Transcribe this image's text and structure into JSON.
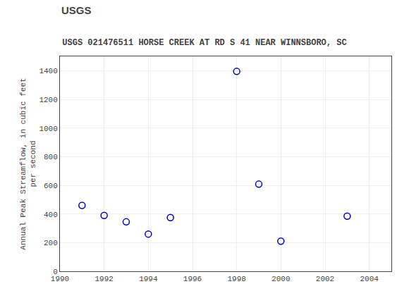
{
  "chart_data": {
    "type": "scatter",
    "title": "USGS 021476511 HORSE CREEK AT RD S 41 NEAR WINNSBORO, SC",
    "annotations": [
      "USGS"
    ],
    "ylabel": "Annual Peak Streamflow, in cubic feet\nper second",
    "x": [
      1991,
      1992,
      1993,
      1994,
      1995,
      1998,
      1999,
      2000,
      2003
    ],
    "values": [
      460,
      390,
      345,
      260,
      375,
      1395,
      608,
      210,
      385
    ],
    "color": "#0000cc",
    "marker": "circle-open",
    "xlim": [
      1990,
      2005
    ],
    "xticks": [
      1990,
      1992,
      1994,
      1996,
      1998,
      2000,
      2002,
      2004
    ],
    "ylim": [
      0,
      1500
    ],
    "yticks": [
      0,
      200,
      400,
      600,
      800,
      1000,
      1200,
      1400
    ],
    "grid": true
  }
}
